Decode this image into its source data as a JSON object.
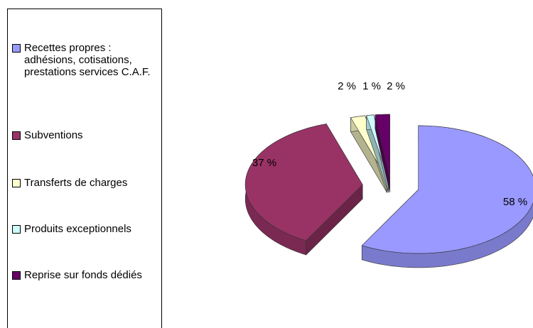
{
  "chart_data": {
    "type": "pie",
    "categories": [
      "Recettes propres : adhésions, cotisations, prestations services C.A.F.",
      "Subventions",
      "Transferts de charges",
      "Produits exceptionnels",
      "Reprise sur fonds dédiés"
    ],
    "values": [
      58,
      37,
      2,
      1,
      2
    ],
    "value_labels": [
      "58 %",
      "37 %",
      "2 %",
      "1 %",
      "2 %"
    ],
    "colors": [
      "#9999ff",
      "#993366",
      "#ffffcc",
      "#ccffff",
      "#660066"
    ],
    "legend": "left"
  }
}
